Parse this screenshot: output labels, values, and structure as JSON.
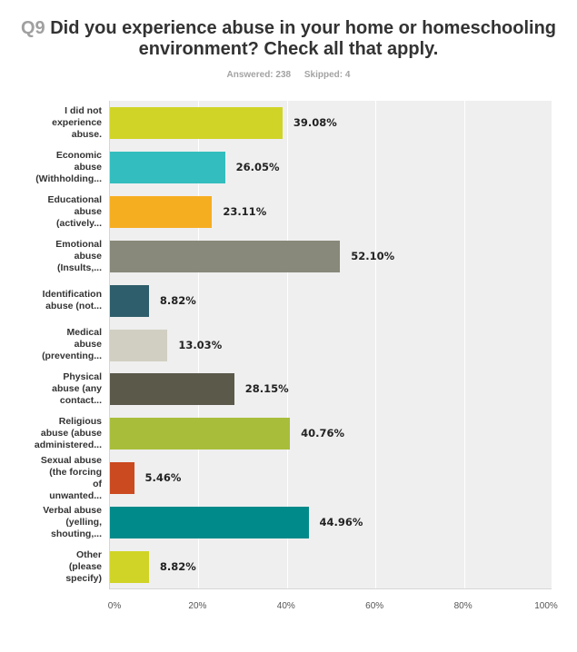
{
  "header": {
    "question_number": "Q9",
    "title": "Did you experience abuse in your home or homeschooling environment? Check all that apply.",
    "answered": "Answered: 238",
    "skipped": "Skipped: 4"
  },
  "chart_data": {
    "type": "bar",
    "orientation": "horizontal",
    "title": "Q9 Did you experience abuse in your home or homeschooling environment? Check all that apply.",
    "subtitle": "Answered: 238   Skipped: 4",
    "xlabel": "",
    "ylabel": "",
    "xlim": [
      0,
      100
    ],
    "grid": true,
    "legend": null,
    "x_ticks": [
      "0%",
      "20%",
      "40%",
      "60%",
      "80%",
      "100%"
    ],
    "categories": [
      "I did not experience abuse.",
      "Economic abuse (Withholding...",
      "Educational abuse (actively...",
      "Emotional abuse (Insults,...",
      "Identification abuse (not...",
      "Medical abuse (preventing...",
      "Physical abuse (any contact...",
      "Religious abuse (abuse administered...",
      "Sexual abuse (the forcing of unwanted...",
      "Verbal abuse (yelling, shouting,...",
      "Other (please specify)"
    ],
    "values": [
      39.08,
      26.05,
      23.11,
      52.1,
      8.82,
      13.03,
      28.15,
      40.76,
      5.46,
      44.96,
      8.82
    ],
    "value_labels": [
      "39.08%",
      "26.05%",
      "23.11%",
      "52.10%",
      "8.82%",
      "13.03%",
      "28.15%",
      "40.76%",
      "5.46%",
      "44.96%",
      "8.82%"
    ],
    "colors": [
      "#d0d426",
      "#33bdbe",
      "#f6ae21",
      "#88897a",
      "#2e5e6b",
      "#d0cfc1",
      "#5b594a",
      "#a8bd3a",
      "#cb4a1f",
      "#008a89",
      "#d0d426"
    ]
  },
  "rows": [
    {
      "label_lines": [
        "I did not",
        "experience",
        "abuse."
      ],
      "value": "39.08%"
    },
    {
      "label_lines": [
        "Economic",
        "abuse",
        "(Withholding..."
      ],
      "value": "26.05%"
    },
    {
      "label_lines": [
        "Educational",
        "abuse",
        "(actively..."
      ],
      "value": "23.11%"
    },
    {
      "label_lines": [
        "Emotional",
        "abuse",
        "(Insults,..."
      ],
      "value": "52.10%"
    },
    {
      "label_lines": [
        "Identification",
        "abuse (not..."
      ],
      "value": "8.82%"
    },
    {
      "label_lines": [
        "Medical",
        "abuse",
        "(preventing..."
      ],
      "value": "13.03%"
    },
    {
      "label_lines": [
        "Physical",
        "abuse (any",
        "contact..."
      ],
      "value": "28.15%"
    },
    {
      "label_lines": [
        "Religious",
        "abuse (abuse",
        "administered..."
      ],
      "value": "40.76%"
    },
    {
      "label_lines": [
        "Sexual abuse",
        "(the forcing",
        "of",
        "unwanted..."
      ],
      "value": "5.46%"
    },
    {
      "label_lines": [
        "Verbal abuse",
        "(yelling,",
        "shouting,..."
      ],
      "value": "44.96%"
    },
    {
      "label_lines": [
        "Other",
        "(please",
        "specify)"
      ],
      "value": "8.82%"
    }
  ]
}
